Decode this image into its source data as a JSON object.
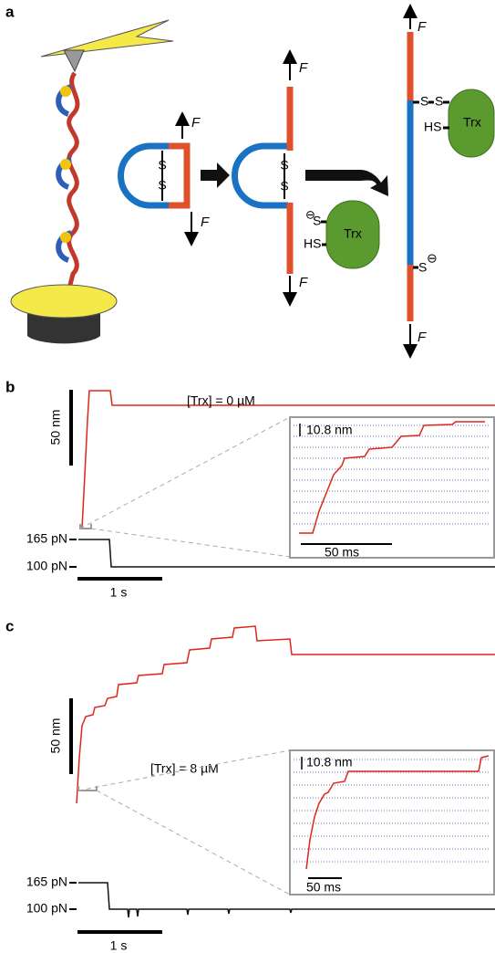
{
  "panels": [
    {
      "label": "a",
      "force": "F",
      "sulfur": "S",
      "protein": "Trx",
      "thiol": "HS",
      "charge": "⊖"
    },
    {
      "label": "b",
      "scale_bar": "50 nm",
      "force_high": "165 pN",
      "force_low": "100 pN",
      "time_bar": "1 s",
      "condition": "[Trx] = 0 µM",
      "inset_step": "10.8 nm",
      "inset_time": "50 ms"
    },
    {
      "label": "c",
      "scale_bar": "50 nm",
      "force_high": "165 pN",
      "force_low": "100 pN",
      "time_bar": "1 s",
      "condition": "[Trx] = 8 µM",
      "inset_step": "10.8 nm",
      "inset_time": "50 ms"
    }
  ]
}
